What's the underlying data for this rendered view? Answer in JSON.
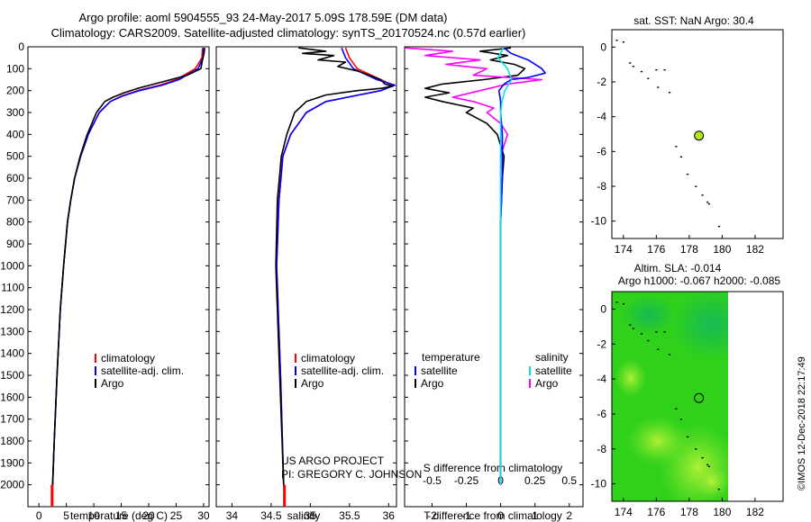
{
  "header": {
    "title_line1": "Argo profile: aoml 5904555_93 24-May-2017 5.09S 178.59E (DM data)",
    "title_line2": "Climatology: CARS2009. Satellite-adjusted climatology: synTS_20170524.nc (0.57d earlier)"
  },
  "credit": {
    "line1": "US ARGO PROJECT",
    "line2": "PI: GREGORY C. JOHNSON",
    "stamp": "©IMOS 12-Dec-2018 22:17:49"
  },
  "colors": {
    "climatology": "#ff0000",
    "satellite": "#0000ff",
    "argo": "#000000",
    "sat_salinity": "#00e5e5",
    "argo_salinity": "#ff00ff",
    "land": "#00cc00",
    "marker": "#b5e61d"
  },
  "chart_data": [
    {
      "id": "temperature",
      "type": "line",
      "xlabel": "temperature (deg C)",
      "ylabel": "depth",
      "xlim": [
        -2,
        31
      ],
      "ylim": [
        2100,
        0
      ],
      "xticks": [
        "0",
        "5",
        "10",
        "15",
        "20",
        "25",
        "30"
      ],
      "yticks": [
        "0",
        "100",
        "200",
        "300",
        "400",
        "500",
        "600",
        "700",
        "800",
        "900",
        "1000",
        "1100",
        "1200",
        "1300",
        "1400",
        "1500",
        "1600",
        "1700",
        "1800",
        "1900",
        "2000"
      ],
      "legend": [
        "climatology",
        "satellite-adj. clim.",
        "Argo"
      ],
      "series": [
        {
          "name": "climatology",
          "depth": [
            5,
            50,
            100,
            150,
            175,
            200,
            225,
            250,
            300,
            400,
            500,
            600,
            700,
            800,
            1000,
            1200,
            1500,
            1800,
            2000,
            2050
          ],
          "values": [
            29.8,
            29.7,
            28.5,
            25,
            22,
            18,
            15,
            13,
            11,
            9,
            7.6,
            6.5,
            5.8,
            5.2,
            4.5,
            3.9,
            3.3,
            2.8,
            2.5,
            2.4
          ]
        },
        {
          "name": "satellite-adj. clim.",
          "depth": [
            5,
            50,
            100,
            150,
            175,
            200,
            225,
            250,
            300,
            400,
            500,
            600,
            700,
            800,
            1000,
            1200,
            1500,
            1800,
            2000,
            2050
          ],
          "values": [
            30,
            29.9,
            29,
            25.5,
            22.5,
            18.3,
            15.2,
            13,
            11,
            9,
            7.6,
            6.5,
            5.8,
            5.2,
            4.5,
            3.9,
            3.3,
            2.8,
            2.5,
            2.4
          ]
        },
        {
          "name": "Argo",
          "depth": [
            5,
            30,
            60,
            100,
            130,
            150,
            170,
            190,
            210,
            230,
            250,
            300,
            400,
            500,
            600,
            700,
            800,
            1000,
            1200,
            1500,
            1800,
            2000
          ],
          "values": [
            30.2,
            30.1,
            29.8,
            29.5,
            27,
            24,
            21,
            18,
            15.5,
            13.5,
            12,
            10.5,
            8.8,
            7.5,
            6.5,
            5.8,
            5.2,
            4.5,
            3.9,
            3.3,
            2.8,
            2.5
          ]
        }
      ]
    },
    {
      "id": "salinity",
      "type": "line",
      "xlabel": "salinity",
      "ylabel": "depth",
      "xlim": [
        33.8,
        36.1
      ],
      "ylim": [
        2100,
        0
      ],
      "xticks": [
        "34",
        "34.5",
        "35",
        "35.5",
        "36"
      ],
      "legend": [
        "climatology",
        "satellite-adj. clim.",
        "Argo"
      ],
      "series": [
        {
          "name": "climatology",
          "depth": [
            5,
            50,
            100,
            150,
            175,
            200,
            250,
            300,
            400,
            500,
            700,
            1000,
            1500,
            2000,
            2050
          ],
          "values": [
            35.45,
            35.5,
            35.6,
            35.9,
            36.05,
            35.9,
            35.2,
            34.95,
            34.75,
            34.65,
            34.6,
            34.57,
            34.62,
            34.66,
            34.67
          ]
        },
        {
          "name": "satellite-adj. clim.",
          "depth": [
            5,
            50,
            100,
            150,
            175,
            200,
            250,
            300,
            400,
            500,
            700,
            1000,
            1500,
            2000,
            2050
          ],
          "values": [
            35.4,
            35.45,
            35.55,
            35.85,
            36.08,
            35.9,
            35.2,
            34.95,
            34.75,
            34.65,
            34.6,
            34.57,
            34.62,
            34.66,
            34.67
          ]
        },
        {
          "name": "Argo",
          "depth": [
            5,
            20,
            30,
            40,
            60,
            70,
            90,
            110,
            130,
            150,
            170,
            180,
            190,
            200,
            220,
            250,
            300,
            400,
            500,
            700,
            1000,
            1500,
            2000
          ],
          "values": [
            34.85,
            35.2,
            34.9,
            35.3,
            35.1,
            35.45,
            35.35,
            35.6,
            35.75,
            35.9,
            35.95,
            36.05,
            35.9,
            35.6,
            35.2,
            34.95,
            34.8,
            34.7,
            34.63,
            34.58,
            34.56,
            34.61,
            34.66
          ]
        }
      ]
    },
    {
      "id": "difference",
      "type": "line",
      "xlabel": "T difference from climatology",
      "top_label": "S difference from climatology",
      "xlim": [
        -2.8,
        2.4
      ],
      "ylim": [
        2100,
        0
      ],
      "xticks": [
        "-2",
        "-1",
        "0",
        "1",
        "2"
      ],
      "top_ticks": [
        "-0.5",
        "-0.25",
        "0",
        "0.25",
        "0.5"
      ],
      "legend_left_title": "temperature",
      "legend_right_title": "salinity",
      "legend": [
        "satellite",
        "Argo",
        "satellite",
        "Argo"
      ],
      "series": [
        {
          "name": "T satellite",
          "depth": [
            5,
            30,
            60,
            100,
            120,
            140,
            150,
            170,
            200,
            250,
            300,
            400,
            500,
            600,
            800,
            1000,
            1200,
            1500,
            2000
          ],
          "values": [
            0.1,
            0.3,
            0.8,
            1.2,
            1.3,
            0.8,
            0.3,
            0.1,
            -0.05,
            0,
            0,
            0.05,
            0.05,
            0.05,
            0,
            0,
            0,
            0,
            0
          ]
        },
        {
          "name": "T Argo",
          "depth": [
            5,
            20,
            40,
            60,
            80,
            100,
            130,
            150,
            170,
            190,
            210,
            230,
            250,
            280,
            300,
            350,
            400,
            500,
            600,
            800,
            1000,
            1200,
            1500,
            2000
          ],
          "values": [
            0.3,
            -0.6,
            0.2,
            -0.3,
            0.4,
            0.7,
            0.5,
            -0.5,
            -1.7,
            -2.2,
            -1.5,
            -2.2,
            -1.7,
            -0.8,
            -1,
            -0.4,
            -0.1,
            0.1,
            0.05,
            0,
            0,
            0,
            0,
            0
          ]
        },
        {
          "name": "S satellite",
          "depth": [
            5,
            50,
            100,
            150,
            200,
            250,
            300,
            400,
            600,
            800,
            1000,
            1500,
            2000
          ],
          "values": [
            0.02,
            -0.02,
            0.05,
            0.08,
            0.03,
            0.01,
            0,
            0,
            0,
            0,
            0,
            0,
            0
          ]
        },
        {
          "name": "S Argo",
          "depth": [
            5,
            20,
            40,
            60,
            80,
            100,
            130,
            150,
            170,
            200,
            230,
            250,
            280,
            300,
            350,
            400,
            500,
            600,
            800,
            1000,
            1500,
            2000
          ],
          "values": [
            -0.7,
            -0.35,
            -0.55,
            -0.15,
            -0.4,
            -0.1,
            -0.2,
            0.3,
            0.05,
            -0.15,
            -0.35,
            -0.2,
            -0.05,
            -0.1,
            0,
            0.05,
            0,
            0,
            0,
            0,
            0,
            0
          ]
        }
      ]
    },
    {
      "id": "sst_map",
      "type": "scatter",
      "title": "sat. SST: NaN Argo: 30.4",
      "xlim": [
        173.3,
        183.7
      ],
      "ylim": [
        -11,
        1
      ],
      "xticks": [
        "174",
        "176",
        "178",
        "180",
        "182"
      ],
      "yticks": [
        "0",
        "-2",
        "-4",
        "-6",
        "-8",
        "-10"
      ],
      "profile": {
        "lon": 178.59,
        "lat": -5.09
      },
      "land_dots": [
        [
          173.6,
          0.4
        ],
        [
          174,
          0.3
        ],
        [
          174.4,
          -0.9
        ],
        [
          174.6,
          -1.1
        ],
        [
          175.1,
          -1.4
        ],
        [
          175.5,
          -1.8
        ],
        [
          176,
          -1.3
        ],
        [
          176.5,
          -1.3
        ],
        [
          176.1,
          -2.3
        ],
        [
          176.8,
          -2.6
        ],
        [
          177.2,
          -5.7
        ],
        [
          177.5,
          -6.3
        ],
        [
          177.9,
          -7.3
        ],
        [
          178.4,
          -8
        ],
        [
          178.8,
          -8.5
        ],
        [
          179.2,
          -9
        ],
        [
          179.8,
          -10.3
        ],
        [
          179.1,
          -8.9
        ]
      ]
    },
    {
      "id": "sla_map",
      "type": "heatmap",
      "title_line1": "Altim. SLA: -0.014",
      "title_line2": "Argo h1000: -0.067 h2000: -0.085",
      "xlim": [
        173.3,
        183.7
      ],
      "ylim": [
        -11,
        1
      ],
      "xticks": [
        "174",
        "176",
        "178",
        "180",
        "182"
      ],
      "yticks": [
        "0",
        "-2",
        "-4",
        "-6",
        "-8",
        "-10"
      ],
      "data_extent_lon": [
        173.3,
        180
      ],
      "profile": {
        "lon": 178.59,
        "lat": -5.09
      }
    }
  ]
}
